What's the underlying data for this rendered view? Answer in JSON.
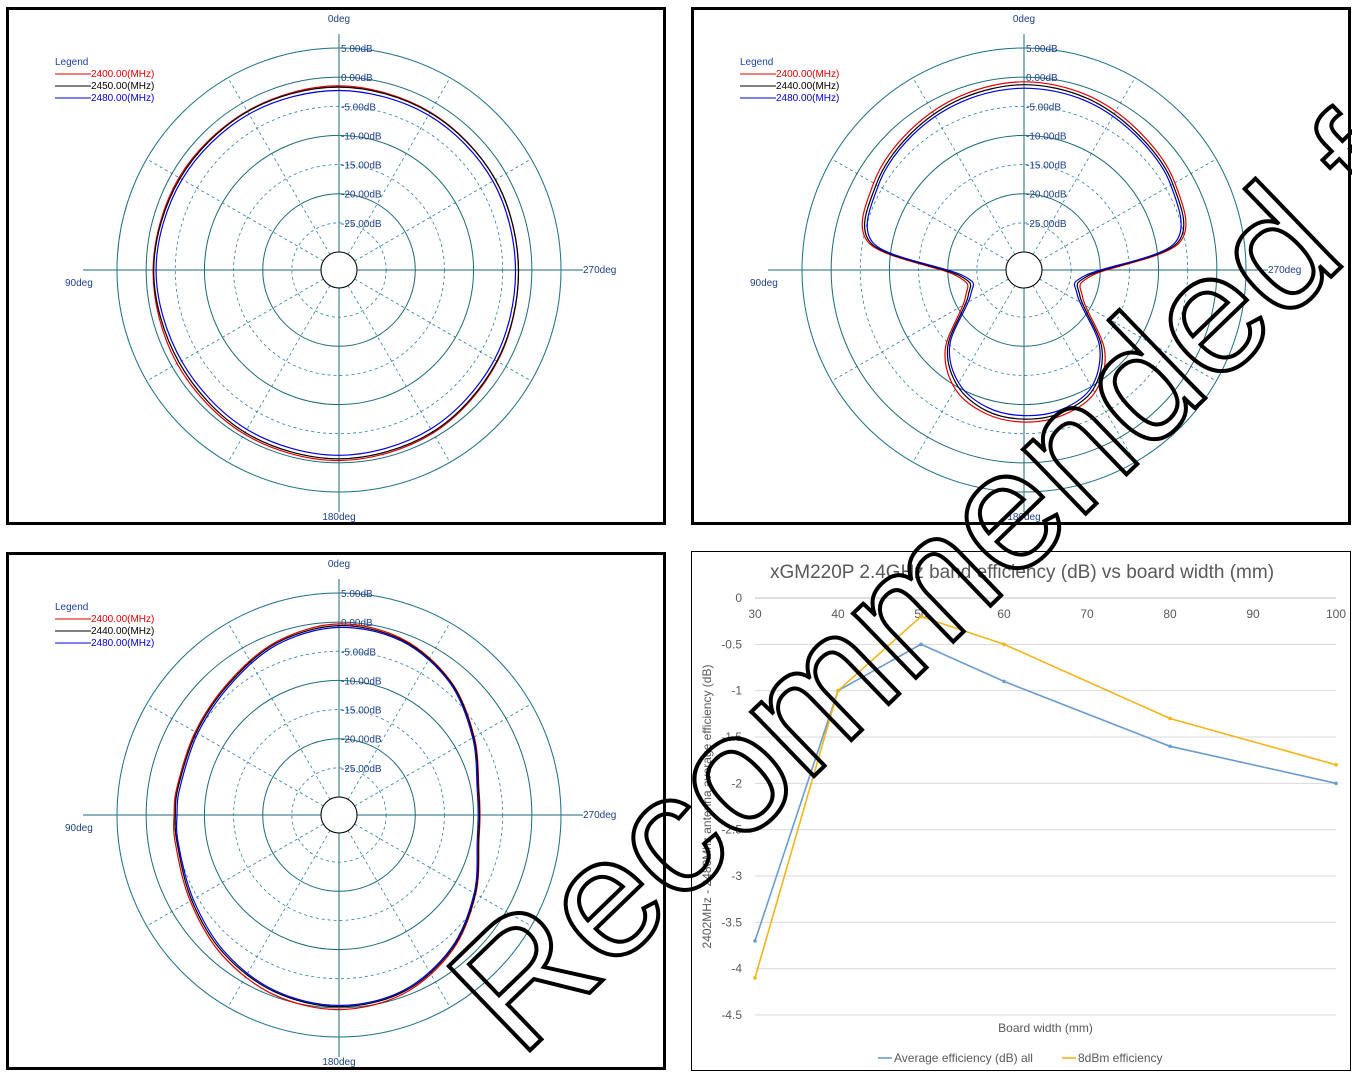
{
  "chart_data": [
    {
      "type": "polar",
      "angle_labels": {
        "top": "0deg",
        "left": "90deg",
        "right": "270deg",
        "bottom": "180deg"
      },
      "ring_labels": [
        "5.00dB",
        "0.00dB",
        "-5.00dB",
        "-10.00dB",
        "-15.00dB",
        "-20.00dB",
        "-25.00dB"
      ],
      "rlim": [
        -30,
        5
      ],
      "legend": {
        "title": "Legend",
        "position": "top-left"
      },
      "series": [
        {
          "name": "2400.00(MHz)",
          "color": "#e00000",
          "angles_deg": [
            0,
            30,
            60,
            90,
            120,
            150,
            180,
            210,
            240,
            270,
            300,
            330
          ],
          "gain_db": [
            -1.5,
            -1.6,
            -1.4,
            -1.2,
            -1.0,
            -0.6,
            -0.4,
            -0.8,
            -1.7,
            -2.3,
            -2.1,
            -1.8
          ]
        },
        {
          "name": "2450.00(MHz)",
          "color": "#000000",
          "angles_deg": [
            0,
            30,
            60,
            90,
            120,
            150,
            180,
            210,
            240,
            270,
            300,
            330
          ],
          "gain_db": [
            -1.7,
            -1.7,
            -1.6,
            -1.3,
            -1.4,
            -0.9,
            -0.7,
            -1.0,
            -1.8,
            -2.3,
            -2.1,
            -1.9
          ]
        },
        {
          "name": "2480.00(MHz)",
          "color": "#0000e0",
          "angles_deg": [
            0,
            30,
            60,
            90,
            120,
            150,
            180,
            210,
            240,
            270,
            300,
            330
          ],
          "gain_db": [
            -2.3,
            -2.2,
            -2.0,
            -1.7,
            -1.9,
            -1.5,
            -1.3,
            -1.6,
            -2.3,
            -2.8,
            -2.6,
            -2.4
          ]
        }
      ]
    },
    {
      "type": "polar",
      "angle_labels": {
        "top": "0deg",
        "left": "90deg",
        "right": "270deg",
        "bottom": "180deg"
      },
      "ring_labels": [
        "5.00dB",
        "0.00dB",
        "-5.00dB",
        "-10.00dB",
        "-15.00dB",
        "-20.00dB",
        "-25.00dB"
      ],
      "rlim": [
        -30,
        5
      ],
      "legend": {
        "title": "Legend",
        "position": "top-left"
      },
      "series": [
        {
          "name": "2400.00(MHz)",
          "color": "#e00000",
          "angles_deg": [
            0,
            20,
            40,
            60,
            80,
            95,
            115,
            135,
            150,
            165,
            180,
            195,
            210,
            225,
            245,
            265,
            280,
            300,
            320,
            340
          ],
          "gain_db": [
            -0.8,
            -1.3,
            -2.2,
            -3.3,
            -6.0,
            -21.5,
            -22.0,
            -14.0,
            -9.5,
            -7.6,
            -7.0,
            -7.3,
            -8.8,
            -13.5,
            -22.0,
            -21.5,
            -6.0,
            -3.2,
            -2.2,
            -1.2
          ]
        },
        {
          "name": "2440.00(MHz)",
          "color": "#000000",
          "angles_deg": [
            0,
            20,
            40,
            60,
            80,
            95,
            115,
            135,
            150,
            165,
            180,
            195,
            210,
            225,
            245,
            265,
            280,
            300,
            320,
            340
          ],
          "gain_db": [
            -1.3,
            -1.8,
            -2.7,
            -3.8,
            -6.4,
            -22.0,
            -22.5,
            -14.6,
            -10.2,
            -8.1,
            -7.5,
            -7.8,
            -9.4,
            -14.2,
            -22.5,
            -22.0,
            -6.4,
            -3.6,
            -2.7,
            -1.7
          ]
        },
        {
          "name": "2480.00(MHz)",
          "color": "#0000e0",
          "angles_deg": [
            0,
            20,
            40,
            60,
            80,
            95,
            115,
            135,
            150,
            165,
            180,
            195,
            210,
            225,
            245,
            265,
            280,
            300,
            320,
            340
          ],
          "gain_db": [
            -1.9,
            -2.3,
            -3.1,
            -4.2,
            -6.9,
            -22.5,
            -23.0,
            -15.1,
            -10.7,
            -8.7,
            -8.1,
            -8.3,
            -9.9,
            -14.8,
            -23.0,
            -22.5,
            -6.9,
            -4.0,
            -3.1,
            -2.2
          ]
        }
      ]
    },
    {
      "type": "polar",
      "angle_labels": {
        "top": "0deg",
        "left": "90deg",
        "right": "270deg",
        "bottom": "180deg"
      },
      "ring_labels": [
        "5.00dB",
        "0.00dB",
        "-5.00dB",
        "-10.00dB",
        "-15.00dB",
        "-20.00dB",
        "-25.00dB"
      ],
      "rlim": [
        -30,
        5
      ],
      "legend": {
        "title": "Legend",
        "position": "top-left"
      },
      "series": [
        {
          "name": "2400.00(MHz)",
          "color": "#e00000",
          "angles_deg": [
            0,
            20,
            40,
            60,
            80,
            90,
            100,
            120,
            140,
            160,
            180,
            200,
            220,
            240,
            260,
            270,
            280,
            300,
            320,
            340
          ],
          "gain_db": [
            -0.3,
            -1.5,
            -3.5,
            -4.6,
            -4.9,
            -4.8,
            -4.6,
            -3.6,
            -1.8,
            -0.3,
            0.3,
            -0.5,
            -2.8,
            -6.0,
            -8.7,
            -8.9,
            -8.7,
            -6.3,
            -3.2,
            -1.0
          ]
        },
        {
          "name": "2440.00(MHz)",
          "color": "#000000",
          "angles_deg": [
            0,
            20,
            40,
            60,
            80,
            90,
            100,
            120,
            140,
            160,
            180,
            200,
            220,
            240,
            260,
            270,
            280,
            300,
            320,
            340
          ],
          "gain_db": [
            -0.6,
            -1.7,
            -3.7,
            -4.8,
            -5.1,
            -5.0,
            -4.9,
            -3.9,
            -2.2,
            -0.8,
            -0.2,
            -0.8,
            -3.0,
            -6.1,
            -8.8,
            -9.0,
            -8.8,
            -6.4,
            -3.3,
            -1.2
          ]
        },
        {
          "name": "2480.00(MHz)",
          "color": "#0000e0",
          "angles_deg": [
            0,
            20,
            40,
            60,
            80,
            90,
            100,
            120,
            140,
            160,
            180,
            200,
            220,
            240,
            260,
            270,
            280,
            300,
            320,
            340
          ],
          "gain_db": [
            -0.9,
            -2.0,
            -4.0,
            -5.1,
            -5.4,
            -5.3,
            -5.1,
            -4.2,
            -2.5,
            -1.0,
            -0.4,
            -1.0,
            -3.2,
            -6.3,
            -9.0,
            -9.2,
            -9.0,
            -6.6,
            -3.5,
            -1.4
          ]
        }
      ]
    },
    {
      "type": "line",
      "title": "xGM220P 2.4GHz band efficiency (dB) vs board width (mm)",
      "xlabel": "Board width (mm)",
      "ylabel": "2402MHz - 2480Mhz antenna average efficiency (dB)",
      "x_ticks": [
        30,
        40,
        50,
        60,
        70,
        80,
        90,
        100
      ],
      "y_ticks": [
        "0",
        "-0.5",
        "-1",
        "-1.5",
        "-2",
        "-2.5",
        "-3",
        "-3.5",
        "-4",
        "-4.5"
      ],
      "xlim": [
        30,
        100
      ],
      "ylim": [
        -4.5,
        0
      ],
      "x_axis_position": "top",
      "grid": true,
      "legend_position": "bottom",
      "series": [
        {
          "name": "Average efficiency (dB) all",
          "color": "#6a9bd1",
          "x": [
            30,
            40,
            50,
            60,
            80,
            100
          ],
          "y": [
            -3.7,
            -1.0,
            -0.5,
            -0.9,
            -1.6,
            -2.0
          ]
        },
        {
          "name": "8dBm efficiency",
          "color": "#f2b51a",
          "x": [
            30,
            40,
            50,
            60,
            80,
            100
          ],
          "y": [
            -4.1,
            -1.0,
            -0.2,
            -0.5,
            -1.3,
            -1.8
          ]
        }
      ]
    }
  ],
  "watermark": "Recommended for New Designs"
}
